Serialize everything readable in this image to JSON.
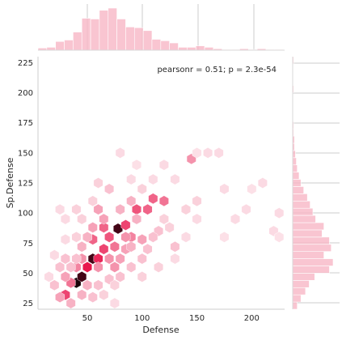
{
  "chart_data": {
    "type": "hexbin",
    "xlabel": "Defense",
    "ylabel": "Sp.Defense",
    "annotation": "pearsonr = 0.51; p = 2.3e-54",
    "xlim": [
      5,
      230
    ],
    "ylim": [
      20,
      230
    ],
    "xticks": [
      "50",
      "100",
      "150",
      "200"
    ],
    "xtick_values": [
      50,
      100,
      150,
      200
    ],
    "yticks": [
      "25",
      "50",
      "75",
      "100",
      "125",
      "150",
      "175",
      "200",
      "225"
    ],
    "ytick_values": [
      25,
      50,
      75,
      100,
      125,
      150,
      175,
      200,
      225
    ],
    "colors": {
      "base": "#e8174d",
      "hist": "#f7b6c5",
      "hist_edge": "#ffffff",
      "dark": "#1a0008"
    },
    "hexbins": [
      [
        40,
        42,
        1.0
      ],
      [
        45,
        47,
        0.95
      ],
      [
        55,
        62,
        0.95
      ],
      [
        78,
        87,
        0.95
      ],
      [
        50,
        55,
        0.75
      ],
      [
        60,
        62,
        0.7
      ],
      [
        65,
        70,
        0.6
      ],
      [
        85,
        90,
        0.6
      ],
      [
        30,
        32,
        0.6
      ],
      [
        55,
        78,
        0.5
      ],
      [
        70,
        80,
        0.55
      ],
      [
        65,
        88,
        0.5
      ],
      [
        95,
        103,
        0.55
      ],
      [
        105,
        103,
        0.5
      ],
      [
        110,
        112,
        0.5
      ],
      [
        120,
        110,
        0.45
      ],
      [
        75,
        72,
        0.45
      ],
      [
        90,
        80,
        0.4
      ],
      [
        40,
        55,
        0.4
      ],
      [
        45,
        62,
        0.35
      ],
      [
        35,
        42,
        0.45
      ],
      [
        30,
        47,
        0.3
      ],
      [
        60,
        55,
        0.35
      ],
      [
        70,
        62,
        0.35
      ],
      [
        75,
        55,
        0.35
      ],
      [
        80,
        62,
        0.3
      ],
      [
        85,
        70,
        0.3
      ],
      [
        90,
        72,
        0.25
      ],
      [
        100,
        78,
        0.3
      ],
      [
        115,
        85,
        0.2
      ],
      [
        130,
        72,
        0.2
      ],
      [
        145,
        145,
        0.35
      ],
      [
        60,
        103,
        0.3
      ],
      [
        65,
        95,
        0.3
      ],
      [
        80,
        103,
        0.25
      ],
      [
        90,
        110,
        0.25
      ],
      [
        95,
        95,
        0.25
      ],
      [
        85,
        80,
        0.35
      ],
      [
        55,
        88,
        0.3
      ],
      [
        50,
        80,
        0.25
      ],
      [
        45,
        72,
        0.25
      ],
      [
        40,
        62,
        0.2
      ],
      [
        35,
        55,
        0.2
      ],
      [
        25,
        55,
        0.2
      ],
      [
        30,
        62,
        0.2
      ],
      [
        20,
        40,
        0.2
      ],
      [
        25,
        30,
        0.3
      ],
      [
        35,
        25,
        0.25
      ],
      [
        45,
        32,
        0.25
      ],
      [
        50,
        40,
        0.25
      ],
      [
        60,
        40,
        0.2
      ],
      [
        70,
        45,
        0.2
      ],
      [
        75,
        40,
        0.15
      ],
      [
        80,
        47,
        0.2
      ],
      [
        90,
        55,
        0.2
      ],
      [
        100,
        62,
        0.2
      ],
      [
        105,
        70,
        0.2
      ],
      [
        110,
        80,
        0.2
      ],
      [
        120,
        95,
        0.15
      ],
      [
        125,
        88,
        0.15
      ],
      [
        140,
        103,
        0.15
      ],
      [
        150,
        110,
        0.15
      ],
      [
        160,
        150,
        0.12
      ],
      [
        170,
        150,
        0.12
      ],
      [
        175,
        120,
        0.12
      ],
      [
        185,
        95,
        0.12
      ],
      [
        195,
        103,
        0.12
      ],
      [
        220,
        85,
        0.12
      ],
      [
        225,
        100,
        0.12
      ],
      [
        210,
        125,
        0.12
      ],
      [
        80,
        150,
        0.12
      ],
      [
        70,
        120,
        0.2
      ],
      [
        60,
        125,
        0.15
      ],
      [
        55,
        110,
        0.15
      ],
      [
        45,
        95,
        0.15
      ],
      [
        40,
        103,
        0.15
      ],
      [
        30,
        95,
        0.12
      ],
      [
        25,
        103,
        0.12
      ],
      [
        40,
        80,
        0.15
      ],
      [
        30,
        78,
        0.12
      ],
      [
        20,
        65,
        0.12
      ],
      [
        15,
        47,
        0.12
      ],
      [
        55,
        30,
        0.2
      ],
      [
        65,
        32,
        0.15
      ],
      [
        75,
        25,
        0.12
      ],
      [
        100,
        47,
        0.15
      ],
      [
        115,
        55,
        0.15
      ],
      [
        130,
        62,
        0.12
      ],
      [
        140,
        80,
        0.12
      ],
      [
        150,
        95,
        0.12
      ],
      [
        100,
        120,
        0.15
      ],
      [
        110,
        128,
        0.12
      ],
      [
        90,
        128,
        0.12
      ],
      [
        130,
        128,
        0.12
      ],
      [
        120,
        140,
        0.12
      ],
      [
        95,
        140,
        0.1
      ],
      [
        150,
        150,
        0.1
      ],
      [
        175,
        80,
        0.1
      ],
      [
        200,
        120,
        0.1
      ],
      [
        225,
        80,
        0.1
      ]
    ],
    "x_hist": {
      "bin_edges": [
        5,
        13,
        21,
        29,
        37,
        45,
        53,
        61,
        69,
        77,
        85,
        93,
        101,
        109,
        117,
        125,
        133,
        141,
        149,
        157,
        165,
        173,
        181,
        189,
        197,
        205,
        213,
        221,
        229
      ],
      "counts": [
        3,
        4,
        12,
        14,
        25,
        44,
        43,
        55,
        58,
        43,
        32,
        31,
        27,
        15,
        13,
        10,
        4,
        4,
        6,
        4,
        2,
        1,
        1,
        2,
        1,
        2,
        1,
        1
      ]
    },
    "y_hist": {
      "bin_edges": [
        20,
        26,
        32,
        38,
        44,
        50,
        56,
        62,
        68,
        74,
        80,
        86,
        92,
        98,
        104,
        110,
        116,
        122,
        128,
        134,
        140,
        146,
        152,
        158,
        164,
        170,
        176,
        182,
        188,
        194,
        200,
        206,
        212,
        218,
        224,
        230
      ],
      "counts": [
        5,
        9,
        14,
        18,
        24,
        40,
        44,
        34,
        42,
        40,
        32,
        34,
        25,
        22,
        19,
        16,
        12,
        9,
        7,
        5,
        4,
        3,
        2,
        2,
        1,
        1,
        0,
        0,
        0,
        0,
        1,
        0,
        0,
        0,
        1
      ]
    }
  }
}
